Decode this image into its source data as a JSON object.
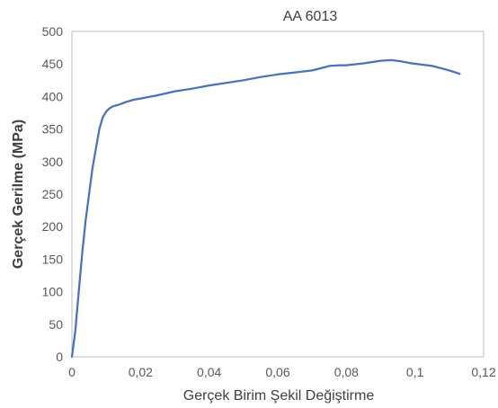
{
  "chart_data": {
    "type": "line",
    "title": "AA 6013",
    "xlabel": "Gerçek Birim Şekil Değiştirme",
    "ylabel": "Gerçek Gerilme (MPa)",
    "xlim": [
      0,
      0.12
    ],
    "ylim": [
      0,
      500
    ],
    "x_ticks": [
      0,
      0.02,
      0.04,
      0.06,
      0.08,
      0.1,
      0.12
    ],
    "x_tick_labels": [
      "0",
      "0,02",
      "0,04",
      "0,06",
      "0,08",
      "0,1",
      "0,12"
    ],
    "y_ticks": [
      0,
      50,
      100,
      150,
      200,
      250,
      300,
      350,
      400,
      450,
      500
    ],
    "y_tick_labels": [
      "0",
      "50",
      "100",
      "150",
      "200",
      "250",
      "300",
      "350",
      "400",
      "450",
      "500"
    ],
    "grid": false,
    "legend": "none",
    "series": [
      {
        "color": "#4472C4",
        "points": [
          [
            0,
            0
          ],
          [
            0.001,
            40
          ],
          [
            0.002,
            100
          ],
          [
            0.003,
            160
          ],
          [
            0.004,
            210
          ],
          [
            0.005,
            250
          ],
          [
            0.006,
            290
          ],
          [
            0.007,
            320
          ],
          [
            0.008,
            350
          ],
          [
            0.009,
            368
          ],
          [
            0.01,
            377
          ],
          [
            0.011,
            382
          ],
          [
            0.012,
            385
          ],
          [
            0.014,
            388
          ],
          [
            0.016,
            392
          ],
          [
            0.018,
            395
          ],
          [
            0.02,
            397
          ],
          [
            0.025,
            402
          ],
          [
            0.03,
            408
          ],
          [
            0.035,
            412
          ],
          [
            0.04,
            417
          ],
          [
            0.045,
            421
          ],
          [
            0.05,
            425
          ],
          [
            0.055,
            430
          ],
          [
            0.06,
            434
          ],
          [
            0.065,
            437
          ],
          [
            0.07,
            440
          ],
          [
            0.073,
            444
          ],
          [
            0.075,
            447
          ],
          [
            0.078,
            448
          ],
          [
            0.08,
            448
          ],
          [
            0.085,
            451
          ],
          [
            0.09,
            455
          ],
          [
            0.093,
            456
          ],
          [
            0.096,
            454
          ],
          [
            0.099,
            451
          ],
          [
            0.102,
            449
          ],
          [
            0.105,
            447
          ],
          [
            0.108,
            443
          ],
          [
            0.11,
            440
          ],
          [
            0.113,
            435
          ]
        ]
      }
    ]
  }
}
